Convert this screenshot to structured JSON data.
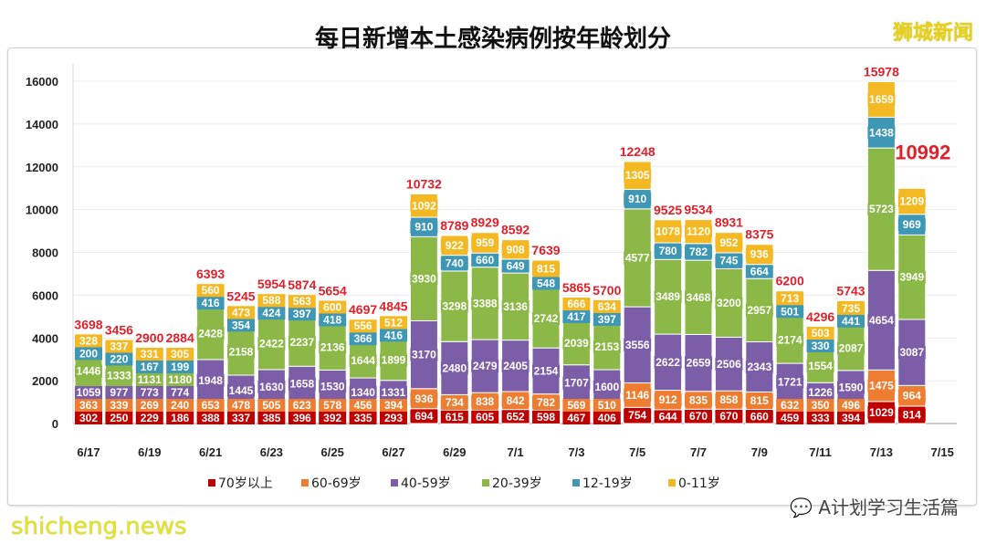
{
  "chart_data": {
    "type": "bar",
    "stacked": true,
    "title": "每日新增本土感染病例按年龄划分",
    "categories": [
      "6/17",
      "6/18",
      "6/19",
      "6/20",
      "6/21",
      "6/22",
      "6/23",
      "6/24",
      "6/25",
      "6/26",
      "6/27",
      "6/28",
      "6/29",
      "6/30",
      "7/1",
      "7/2",
      "7/3",
      "7/4",
      "7/5",
      "7/6",
      "7/7",
      "7/8",
      "7/9",
      "7/10",
      "7/11",
      "7/12",
      "7/13",
      "7/14"
    ],
    "x_tick_labels": [
      "6/17",
      "6/19",
      "6/21",
      "6/23",
      "6/25",
      "6/27",
      "6/29",
      "7/1",
      "7/3",
      "7/5",
      "7/7",
      "7/9",
      "7/11",
      "7/13",
      "7/15"
    ],
    "y_ticks": [
      0,
      2000,
      4000,
      6000,
      8000,
      10000,
      12000,
      14000,
      16000
    ],
    "ylim": [
      0,
      16000
    ],
    "grid": true,
    "legend_position": "bottom",
    "series": [
      {
        "name": "70岁以上",
        "color": "#c00000",
        "values": [
          302,
          250,
          229,
          186,
          388,
          337,
          385,
          396,
          392,
          335,
          293,
          694,
          615,
          605,
          652,
          598,
          467,
          406,
          754,
          644,
          670,
          670,
          660,
          459,
          333,
          394,
          1029,
          814
        ]
      },
      {
        "name": "60-69岁",
        "color": "#ed7d31",
        "values": [
          363,
          339,
          269,
          240,
          653,
          478,
          505,
          623,
          578,
          456,
          394,
          936,
          734,
          838,
          842,
          782,
          569,
          510,
          1146,
          912,
          835,
          858,
          815,
          632,
          350,
          496,
          1475,
          964
        ]
      },
      {
        "name": "40-59岁",
        "color": "#7b5ea7",
        "values": [
          1059,
          977,
          773,
          774,
          1948,
          1445,
          1630,
          1658,
          1530,
          1340,
          1331,
          3170,
          2480,
          2479,
          2405,
          2154,
          1707,
          1600,
          3556,
          2622,
          2659,
          2506,
          2343,
          1721,
          1226,
          1590,
          4654,
          3087
        ]
      },
      {
        "name": "20-39岁",
        "color": "#8cb847",
        "values": [
          1446,
          1333,
          1131,
          1180,
          2428,
          2158,
          2422,
          2237,
          2136,
          1644,
          1899,
          3930,
          3298,
          3388,
          3136,
          2742,
          2039,
          2153,
          4577,
          3489,
          3468,
          3200,
          2957,
          2174,
          1554,
          2087,
          5723,
          3949
        ]
      },
      {
        "name": "12-19岁",
        "color": "#3f97b6",
        "values": [
          200,
          220,
          167,
          199,
          416,
          354,
          424,
          397,
          418,
          366,
          416,
          910,
          740,
          660,
          649,
          548,
          417,
          397,
          910,
          780,
          782,
          745,
          664,
          501,
          330,
          441,
          1438,
          969
        ]
      },
      {
        "name": "0-11岁",
        "color": "#f4b822",
        "values": [
          328,
          337,
          331,
          305,
          560,
          473,
          588,
          563,
          600,
          556,
          512,
          1092,
          922,
          959,
          908,
          815,
          666,
          634,
          1305,
          1078,
          1120,
          952,
          936,
          713,
          503,
          735,
          1659,
          1209
        ]
      }
    ],
    "totals": [
      3698,
      3456,
      2900,
      2884,
      6393,
      5245,
      5954,
      5874,
      5654,
      4697,
      4845,
      10732,
      8789,
      8929,
      8592,
      7639,
      5865,
      5700,
      12248,
      9525,
      9534,
      8931,
      8375,
      6200,
      4296,
      5743,
      15978,
      10992
    ],
    "total_color": "#e0202a"
  },
  "watermarks": {
    "brand": "狮城新闻",
    "wechat": "A计划学习生活篇",
    "site": "shicheng.news"
  }
}
